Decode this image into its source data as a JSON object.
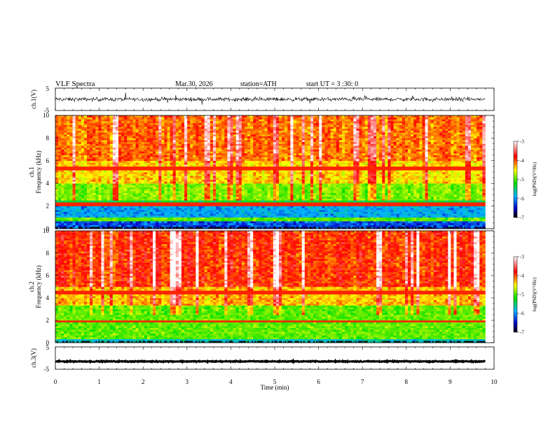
{
  "header": {
    "title": "VLF  Spectra",
    "date": "Mar.30, 2026",
    "station": "station=ATH",
    "start_ut": "start  UT  =    3  :30: 0"
  },
  "chart_data": [
    {
      "type": "line",
      "name": "ch1-waveform",
      "ylabel": "ch.1(V)",
      "xlim": [
        0,
        10
      ],
      "ylim": [
        -5,
        5
      ],
      "data_extent_min": 9.8,
      "approx_level": 0,
      "approx_spread": [
        -1.5,
        1.5
      ],
      "yticks": [
        "5",
        "-5"
      ]
    },
    {
      "type": "heatmap",
      "name": "ch1-spectrogram",
      "channel_label": "ch.1",
      "ylabel": "Frequency  (kHz)",
      "xlim": [
        0,
        10
      ],
      "ylim": [
        0,
        10
      ],
      "yticks": [
        "0",
        "2",
        "4",
        "6",
        "8",
        "10"
      ],
      "colorbar": {
        "label": "log(PSD)(V²/Hz)",
        "range": [
          -7,
          -3
        ],
        "ticks": [
          "-3",
          "-4",
          "-5",
          "-6",
          "-7"
        ]
      },
      "band_levels": [
        {
          "f": [
            0,
            0.6
          ],
          "level": -6.3
        },
        {
          "f": [
            0.6,
            1.0
          ],
          "level": -4.9
        },
        {
          "f": [
            1.0,
            2.0
          ],
          "level": -6.0
        },
        {
          "f": [
            2.0,
            2.5
          ],
          "level": -5.4
        },
        {
          "f": [
            2.5,
            4.0
          ],
          "level": -4.8
        },
        {
          "f": [
            4.0,
            6.0
          ],
          "level": -4.3
        },
        {
          "f": [
            6.0,
            10.0
          ],
          "level": -4.0
        }
      ],
      "tones_khz": [
        2.2,
        5.3
      ]
    },
    {
      "type": "heatmap",
      "name": "ch2-spectrogram",
      "channel_label": "ch.2",
      "ylabel": "Frequency  (kHz)",
      "xlim": [
        0,
        10
      ],
      "ylim": [
        0,
        10
      ],
      "yticks": [
        "0",
        "2",
        "4",
        "6",
        "8",
        "10"
      ],
      "colorbar": {
        "label": "log(PSD)(V²/Hz)",
        "range": [
          -7,
          -3
        ],
        "ticks": [
          "-3",
          "-4",
          "-5",
          "-6",
          "-7"
        ]
      },
      "band_levels": [
        {
          "f": [
            0,
            0.4
          ],
          "level": -5.8
        },
        {
          "f": [
            0.4,
            3.3
          ],
          "level": -4.9
        },
        {
          "f": [
            3.3,
            5.0
          ],
          "level": -4.2
        },
        {
          "f": [
            5.0,
            10.0
          ],
          "level": -3.8
        }
      ],
      "tones_khz": [
        1.9,
        4.5
      ]
    },
    {
      "type": "line",
      "name": "ch3-waveform",
      "ylabel": "ch.3(V)",
      "xlim": [
        0,
        10
      ],
      "ylim": [
        -5,
        5
      ],
      "data_extent_min": 9.8,
      "approx_level": -1.5,
      "approx_spread": [
        -1.9,
        -1.1
      ],
      "yticks": [
        "5",
        "-5"
      ],
      "xlabel": "Time  (min)",
      "xticks": [
        "0",
        "1",
        "2",
        "3",
        "4",
        "5",
        "6",
        "7",
        "8",
        "9",
        "10"
      ]
    }
  ]
}
